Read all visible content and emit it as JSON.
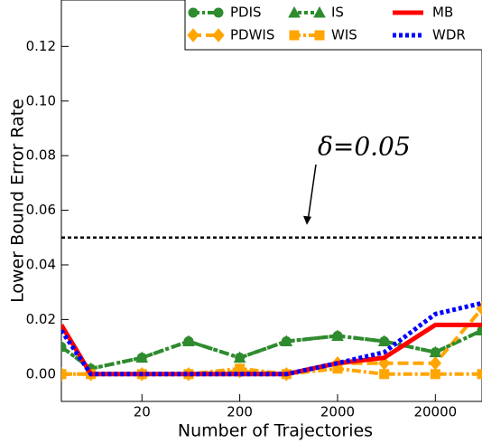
{
  "chart_data": {
    "type": "line",
    "x_label": "Number of Trajectories",
    "y_label": "Lower Bound Error Rate",
    "x": [
      3,
      6,
      20,
      60,
      200,
      600,
      2000,
      6000,
      20000,
      60000
    ],
    "xlim": [
      3,
      60000
    ],
    "xscale": "log",
    "xticks": [
      20,
      200,
      2000,
      20000
    ],
    "ylim": [
      -0.01,
      0.137
    ],
    "yticks": [
      {
        "value": 0,
        "label": "0.00"
      },
      {
        "value": 0.02,
        "label": "0.02"
      },
      {
        "value": 0.04,
        "label": "0.04"
      },
      {
        "value": 0.06,
        "label": "0.06"
      },
      {
        "value": 0.08,
        "label": "0.08"
      },
      {
        "value": 0.1,
        "label": "0.10"
      },
      {
        "value": 0.12,
        "label": "0.12"
      }
    ],
    "legend": "upper right",
    "series": [
      {
        "name": "PDIS",
        "color": "#2e8b2e",
        "marker": "circle",
        "style": "dashdot",
        "values": [
          0.01,
          0.002,
          0.006,
          0.012,
          0.006,
          0.012,
          0.014,
          0.012,
          0.008,
          0.016
        ]
      },
      {
        "name": "PDWIS",
        "color": "#ffa500",
        "marker": "diamond",
        "style": "dashed",
        "values": [
          0,
          0,
          0,
          0,
          0.001,
          0,
          0.004,
          0.004,
          0.004,
          0.024
        ]
      },
      {
        "name": "IS",
        "color": "#2e8b2e",
        "marker": "triangle",
        "style": "dotted",
        "values": [
          0.01,
          0.002,
          0.006,
          0.012,
          0.006,
          0.012,
          0.014,
          0.012,
          0.008,
          0.016
        ]
      },
      {
        "name": "WIS",
        "color": "#ffa500",
        "marker": "square",
        "style": "dashdot",
        "values": [
          0,
          0,
          0,
          0,
          0.002,
          0,
          0.002,
          0,
          0,
          0
        ]
      },
      {
        "name": "MB",
        "color": "#ff0000",
        "marker": "none",
        "style": "solid",
        "values": [
          0.018,
          0,
          0,
          0,
          0,
          0,
          0.004,
          0.006,
          0.018,
          0.018
        ]
      },
      {
        "name": "WDR",
        "color": "#0000ff",
        "marker": "none",
        "style": "dotted",
        "values": [
          0.016,
          0,
          0,
          0,
          0,
          0,
          0.004,
          0.008,
          0.022,
          0.026
        ]
      }
    ],
    "hline": {
      "value": 0.05,
      "color": "#000000"
    },
    "annotation": {
      "text": "δ=0.05",
      "value": 0.05
    }
  }
}
